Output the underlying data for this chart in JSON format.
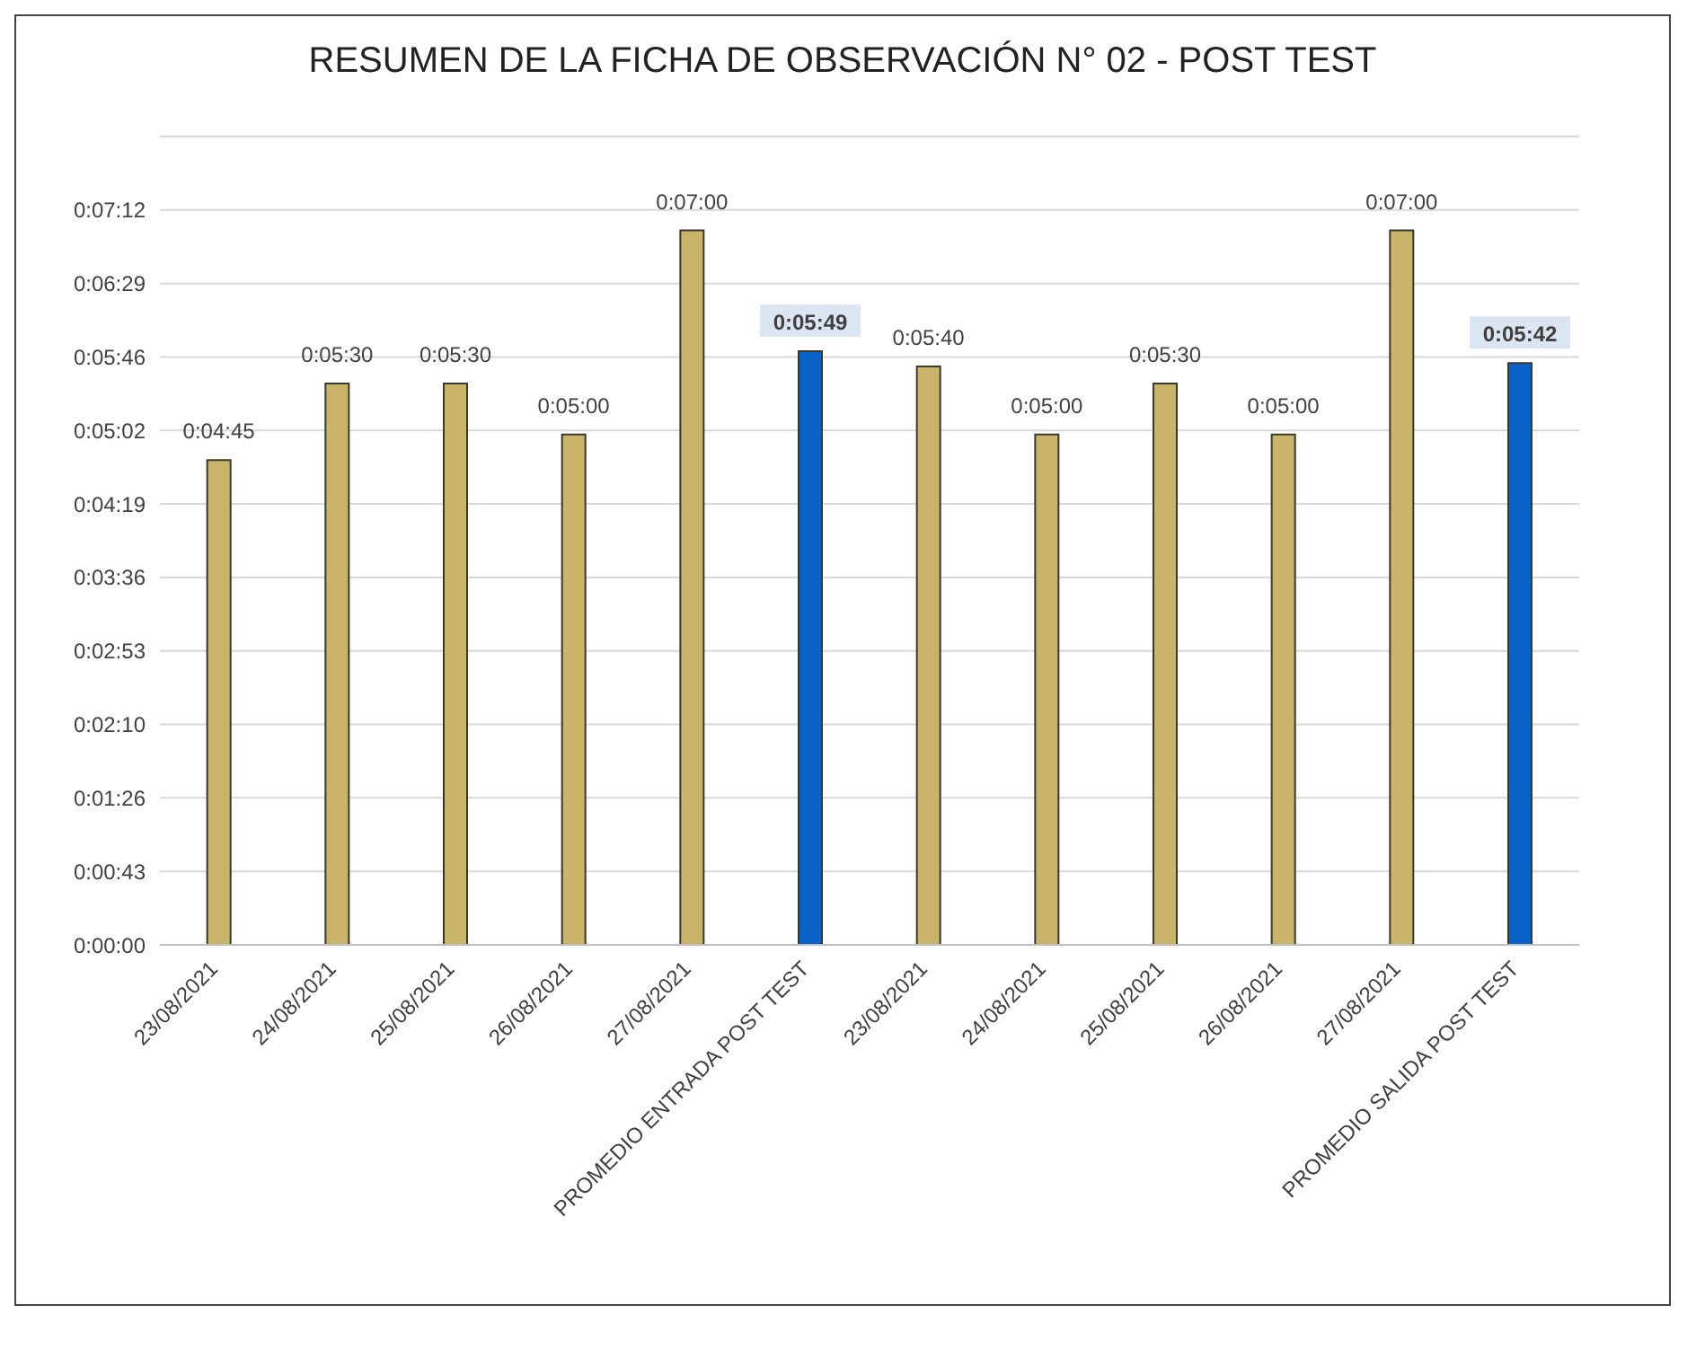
{
  "chart_data": {
    "type": "bar",
    "title": "RESUMEN DE LA FICHA DE OBSERVACIÓN N° 02 - POST TEST",
    "categories": [
      "23/08/2021",
      "24/08/2021",
      "25/08/2021",
      "26/08/2021",
      "27/08/2021",
      "PROMEDIO ENTRADA POST TEST",
      "23/08/2021",
      "24/08/2021",
      "25/08/2021",
      "26/08/2021",
      "27/08/2021",
      "PROMEDIO SALIDA POST TEST"
    ],
    "values": [
      285,
      330,
      330,
      300,
      420,
      349,
      340,
      300,
      330,
      300,
      420,
      342
    ],
    "value_labels": [
      "0:04:45",
      "0:05:30",
      "0:05:30",
      "0:05:00",
      "0:07:00",
      "0:05:49",
      "0:05:40",
      "0:05:00",
      "0:05:30",
      "0:05:00",
      "0:07:00",
      "0:05:42"
    ],
    "colors": [
      "#c9b46a",
      "#c9b46a",
      "#c9b46a",
      "#c9b46a",
      "#c9b46a",
      "#0a63c9",
      "#c9b46a",
      "#c9b46a",
      "#c9b46a",
      "#c9b46a",
      "#c9b46a",
      "#0a63c9"
    ],
    "ylim": [
      0,
      475.2
    ],
    "yticks": [
      {
        "value": 0,
        "label": "0:00:00"
      },
      {
        "value": 43.2,
        "label": "0:00:43"
      },
      {
        "value": 86.4,
        "label": "0:01:26"
      },
      {
        "value": 129.6,
        "label": "0:02:10"
      },
      {
        "value": 172.8,
        "label": "0:02:53"
      },
      {
        "value": 216,
        "label": "0:03:36"
      },
      {
        "value": 259.2,
        "label": "0:04:19"
      },
      {
        "value": 302.4,
        "label": "0:05:02"
      },
      {
        "value": 345.6,
        "label": "0:05:46"
      },
      {
        "value": 388.8,
        "label": "0:06:29"
      },
      {
        "value": 432,
        "label": "0:07:12"
      },
      {
        "value": 475.2,
        "label": null
      }
    ],
    "grid": "y"
  }
}
